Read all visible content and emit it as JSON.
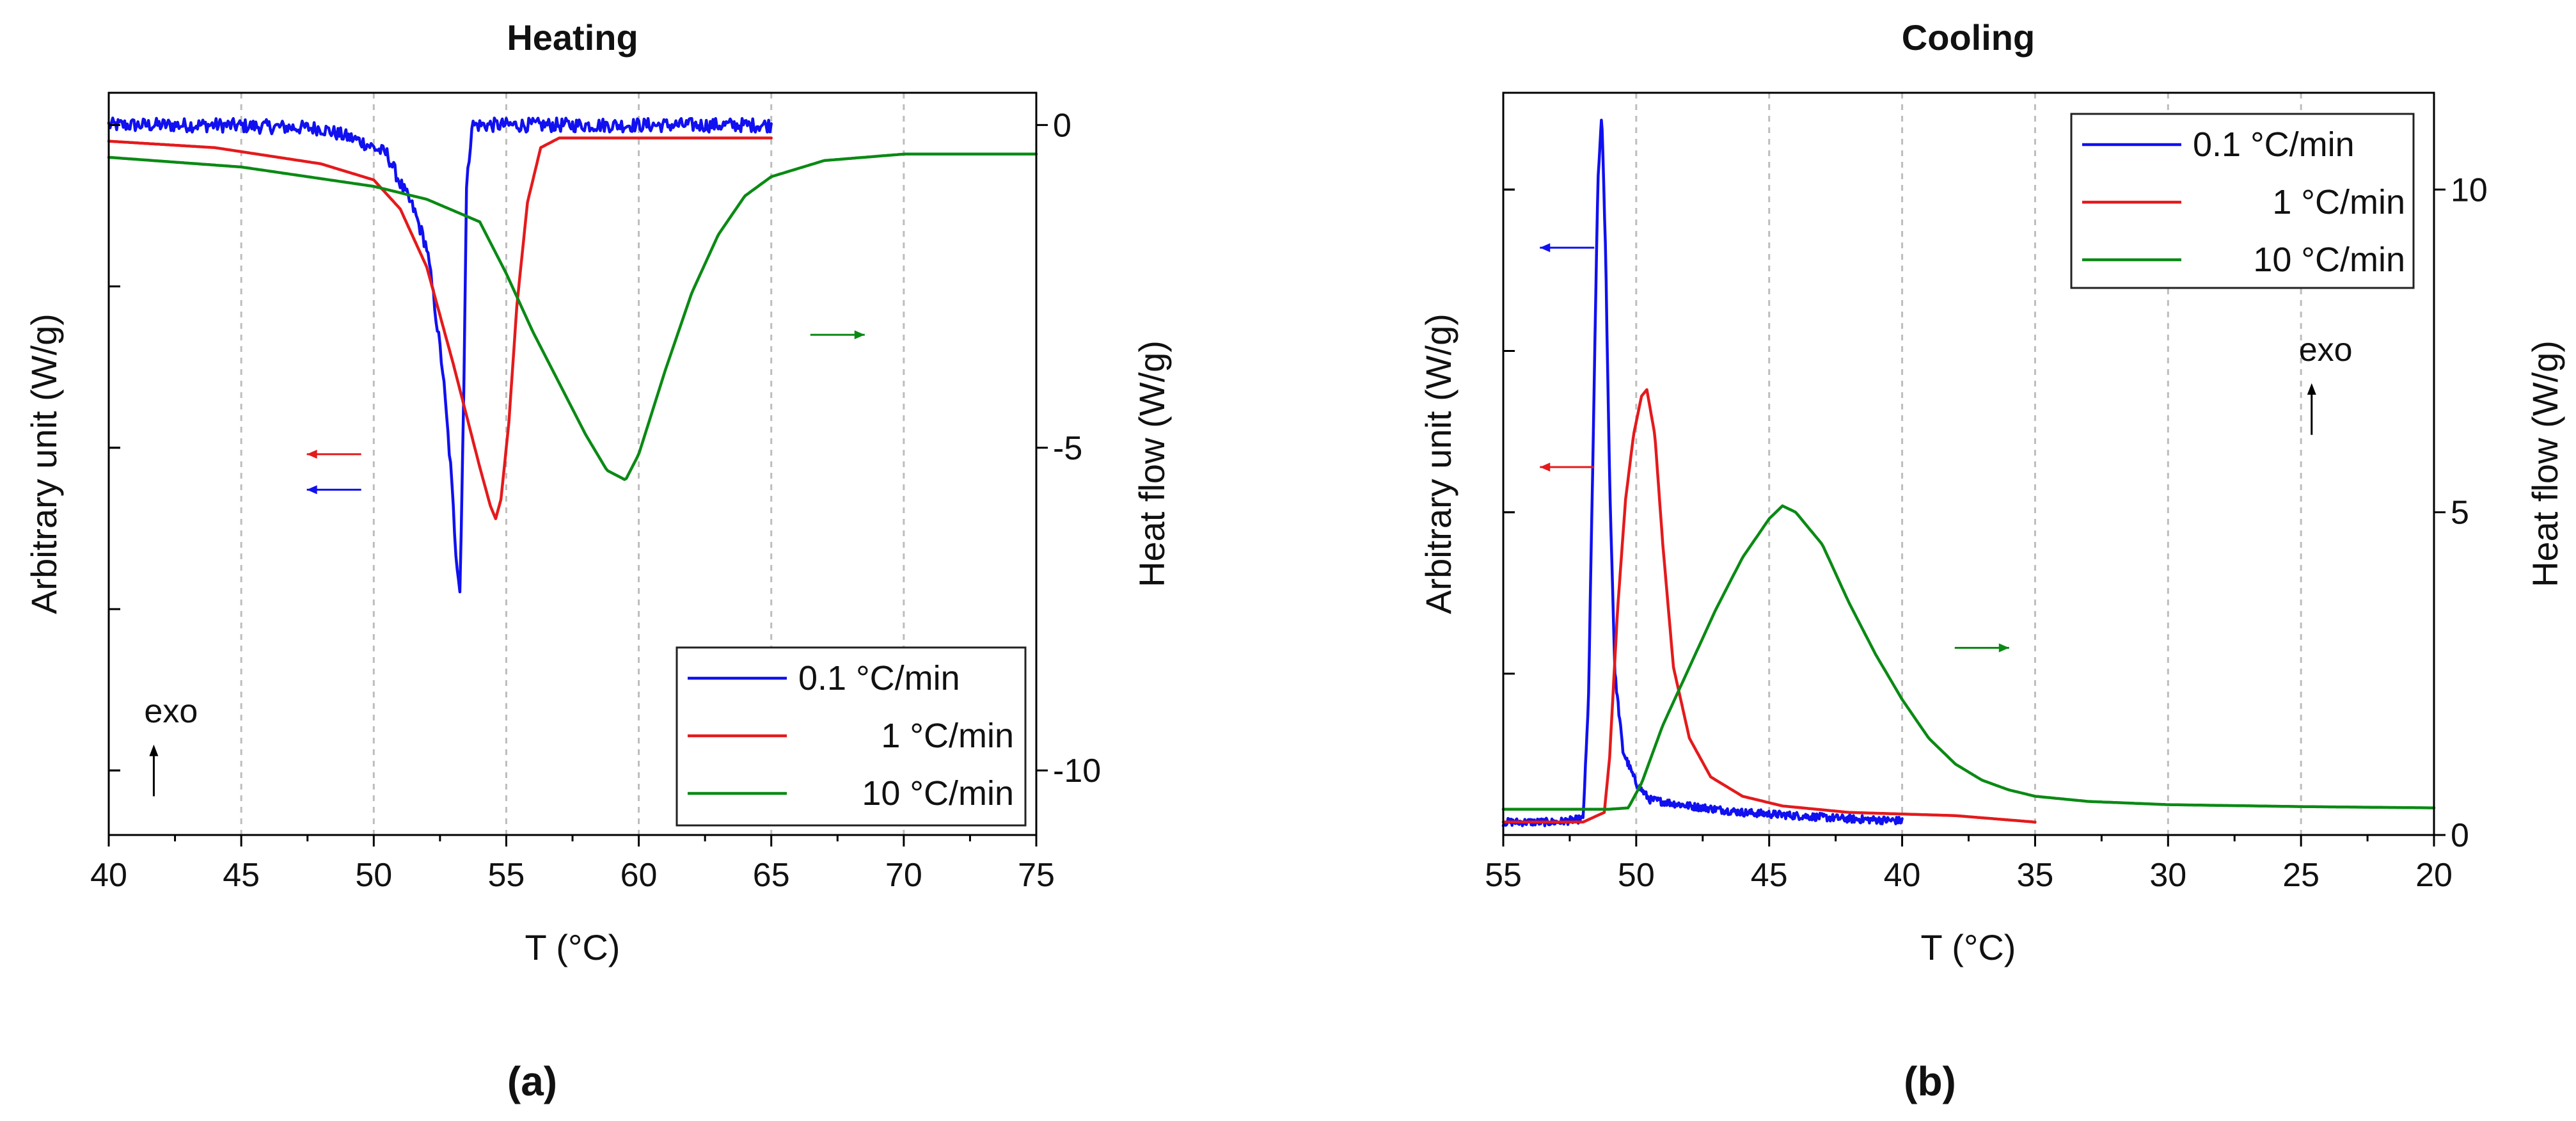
{
  "colors": {
    "blue": "#1010f0",
    "red": "#e41a1c",
    "green": "#0a8a14",
    "arrow": "#000000"
  },
  "panels": [
    {
      "caption": "(a)",
      "chart_data": {
        "type": "line",
        "title": "Heating",
        "xlabel": "T (°C)",
        "ylabel": "Arbitrary unit (W/g)",
        "y2label": "Heat flow (W/g)",
        "xlim": [
          40,
          75
        ],
        "xticks": [
          "40",
          "45",
          "50",
          "55",
          "60",
          "65",
          "70",
          "75"
        ],
        "y2lim": [
          -11,
          0.5
        ],
        "y2ticks": [
          "0",
          "-5",
          "-10"
        ],
        "ylim": [
          -11,
          0.5
        ],
        "grid": "vertical dashed",
        "legend_position": "bottom-right",
        "annotation": "exo",
        "series": [
          {
            "name": "0.1 °C/min",
            "color_key": "blue",
            "axis": "left",
            "x": [
              40,
              44,
              48,
              49.5,
              50.5,
              51,
              51.5,
              52,
              52.3,
              52.6,
              52.9,
              53.1,
              53.25,
              53.3,
              53.4,
              53.5,
              53.7,
              56,
              60,
              65
            ],
            "y": [
              0,
              0,
              -0.05,
              -0.25,
              -0.45,
              -0.9,
              -1.3,
              -1.9,
              -2.8,
              -3.8,
              -5.3,
              -6.6,
              -7.2,
              -6.3,
              -4.0,
              -1.0,
              0,
              0,
              0,
              0
            ],
            "noise": 0.11
          },
          {
            "name": "1 °C/min",
            "color_key": "red",
            "axis": "left",
            "x": [
              40,
              44,
              48,
              50,
              51,
              52,
              53,
              54,
              54.4,
              54.6,
              54.8,
              55.1,
              55.4,
              55.8,
              56.3,
              57,
              60,
              65
            ],
            "y": [
              -0.25,
              -0.35,
              -0.6,
              -0.85,
              -1.3,
              -2.2,
              -3.7,
              -5.3,
              -5.9,
              -6.1,
              -5.8,
              -4.6,
              -2.8,
              -1.2,
              -0.35,
              -0.2,
              -0.2,
              -0.2
            ],
            "noise": 0
          },
          {
            "name": "10 °C/min",
            "color_key": "green",
            "axis": "left",
            "x": [
              40,
              45,
              50,
              52,
              54,
              55,
              56,
              57,
              58,
              58.8,
              59.5,
              60,
              61,
              62,
              63,
              64,
              65,
              67,
              70,
              75
            ],
            "y": [
              -0.5,
              -0.65,
              -0.95,
              -1.15,
              -1.5,
              -2.3,
              -3.2,
              -4.0,
              -4.8,
              -5.35,
              -5.5,
              -5.1,
              -3.8,
              -2.6,
              -1.7,
              -1.1,
              -0.8,
              -0.55,
              -0.45,
              -0.45
            ],
            "noise": 0
          }
        ]
      },
      "axis_arrows": [
        {
          "color_key": "red",
          "direction": "left",
          "x": 48.5,
          "y": -5.1
        },
        {
          "color_key": "blue",
          "direction": "left",
          "x": 48.5,
          "y": -5.65
        },
        {
          "color_key": "green",
          "direction": "right",
          "x": 67.5,
          "y": -3.25
        }
      ],
      "exo_arrow": {
        "x": 41.7,
        "y_from": -10.4,
        "y_to": -9.6
      }
    },
    {
      "caption": "(b)",
      "chart_data": {
        "type": "line",
        "title": "Cooling",
        "xlabel": "T (°C)",
        "ylabel": "Arbitrary unit (W/g)",
        "y2label": "Heat flow (W/g)",
        "xlim": [
          55,
          20
        ],
        "xticks": [
          "55",
          "50",
          "45",
          "40",
          "35",
          "30",
          "25",
          "20"
        ],
        "y2lim": [
          0,
          11.5
        ],
        "y2ticks": [
          "0",
          "5",
          "10"
        ],
        "ylim": [
          0,
          11.5
        ],
        "grid": "vertical dashed",
        "legend_position": "top-right",
        "annotation": "exo",
        "series": [
          {
            "name": "0.1 °C/min",
            "color_key": "blue",
            "axis": "left",
            "x": [
              55,
              53,
              52,
              51.8,
              51.6,
              51.45,
              51.3,
              51.15,
              51.0,
              50.8,
              50.5,
              50.0,
              49.5,
              48,
              46,
              44,
              42,
              40
            ],
            "y": [
              0.2,
              0.2,
              0.25,
              2.0,
              6.5,
              10.0,
              11.2,
              9.0,
              5.5,
              2.5,
              1.3,
              0.8,
              0.55,
              0.45,
              0.35,
              0.3,
              0.25,
              0.22
            ],
            "noise": 0.06
          },
          {
            "name": "1 °C/min",
            "color_key": "red",
            "axis": "left",
            "x": [
              55,
              52,
              51.2,
              51.0,
              50.7,
              50.4,
              50.1,
              49.8,
              49.6,
              49.3,
              49.0,
              48.6,
              48.0,
              47.2,
              46.0,
              44.5,
              42,
              38,
              35
            ],
            "y": [
              0.2,
              0.2,
              0.35,
              1.2,
              3.5,
              5.2,
              6.2,
              6.8,
              6.9,
              6.2,
              4.5,
              2.6,
              1.5,
              0.9,
              0.6,
              0.45,
              0.35,
              0.3,
              0.2
            ],
            "noise": 0
          },
          {
            "name": "10 °C/min",
            "color_key": "green",
            "axis": "left",
            "x": [
              55,
              51,
              50.3,
              49.8,
              49,
              48,
              47,
              46,
              45,
              44.5,
              44,
              43,
              42,
              41,
              40,
              39,
              38,
              37,
              36,
              35,
              33,
              30,
              25,
              20
            ],
            "y": [
              0.4,
              0.4,
              0.42,
              0.8,
              1.7,
              2.6,
              3.5,
              4.3,
              4.9,
              5.1,
              5.0,
              4.5,
              3.6,
              2.8,
              2.1,
              1.5,
              1.1,
              0.85,
              0.7,
              0.6,
              0.52,
              0.47,
              0.44,
              0.42
            ],
            "noise": 0
          }
        ]
      },
      "axis_arrows": [
        {
          "color_key": "blue",
          "direction": "left",
          "x": 52.6,
          "y": 9.1
        },
        {
          "color_key": "red",
          "direction": "left",
          "x": 52.6,
          "y": 5.7
        },
        {
          "color_key": "green",
          "direction": "right",
          "x": 37.0,
          "y": 2.9
        }
      ],
      "exo_arrow": {
        "x": 24.6,
        "y_from": 6.2,
        "y_to": 7.0
      }
    }
  ]
}
